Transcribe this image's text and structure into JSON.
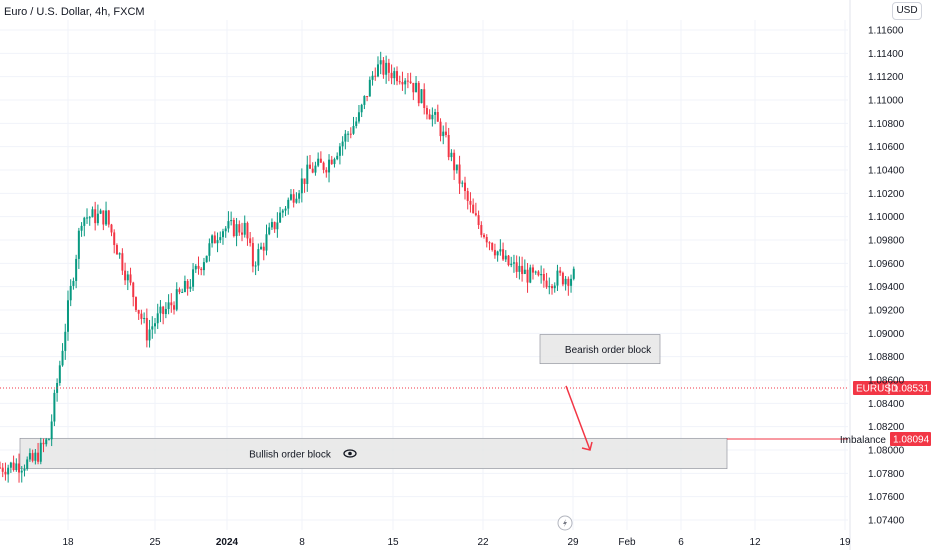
{
  "header": {
    "title": "Euro / U.S. Dollar, 4h, FXCM",
    "currency": "USD"
  },
  "chart_data": {
    "type": "candlestick",
    "title": "Euro / U.S. Dollar, 4h, FXCM",
    "symbol": "EURUSD",
    "last_price": "1.08531",
    "price_axis": {
      "ticks": [
        "1.11600",
        "1.11400",
        "1.11200",
        "1.11000",
        "1.10800",
        "1.10600",
        "1.10400",
        "1.10200",
        "1.10000",
        "1.09800",
        "1.09600",
        "1.09400",
        "1.09200",
        "1.09000",
        "1.08800",
        "1.08600",
        "1.08400",
        "1.08200",
        "1.08000",
        "1.07800",
        "1.07600",
        "1.07400"
      ],
      "range": [
        1.0736,
        1.1178
      ]
    },
    "time_axis": {
      "ticks": [
        "18",
        "25",
        "2024",
        "8",
        "15",
        "22",
        "29",
        "Feb",
        "6",
        "12",
        "19"
      ]
    },
    "series": [
      {
        "interval": "4h",
        "anchors_day": [
          0,
          4,
          6,
          10,
          13,
          18,
          19,
          21,
          23,
          27,
          30,
          31,
          35,
          38,
          40,
          44,
          46,
          50,
          54,
          58,
          62,
          66,
          71,
          75,
          78,
          82,
          86,
          88,
          90,
          92,
          94,
          96,
          98,
          99,
          100,
          101,
          103,
          105,
          106
        ],
        "anchors_price": [
          1.0785,
          1.079,
          1.081,
          1.1,
          1.1,
          1.09,
          1.091,
          1.0925,
          1.094,
          1.099,
          1.099,
          1.096,
          1.101,
          1.104,
          1.1045,
          1.1085,
          1.1128,
          1.112,
          1.1075,
          1.1,
          1.096,
          1.0945,
          1.095,
          1.094,
          1.095,
          1.0985,
          1.096,
          1.0945,
          1.0945,
          1.09,
          1.0875,
          1.087,
          1.088,
          1.089,
          1.09,
          1.089,
          1.087,
          1.086,
          1.088
        ]
      }
    ],
    "annotations": {
      "bearish_block": {
        "label": "Bearish order block",
        "price_top": 1.0899,
        "price_bottom": 1.0874
      },
      "bullish_block": {
        "label": "Bullish order block",
        "price_top": 1.081,
        "price_bottom": 1.0784
      },
      "imbalance": {
        "label": "Imbalance",
        "price": "1.08094"
      },
      "projection": "down arrow from 1.0855 to 1.0800"
    },
    "colors": {
      "up": "#089981",
      "down": "#f23645",
      "grid": "#f0f3fa",
      "blocks_fill": "#e6e6e6",
      "price_tag": "#f23645"
    },
    "grid": true
  }
}
